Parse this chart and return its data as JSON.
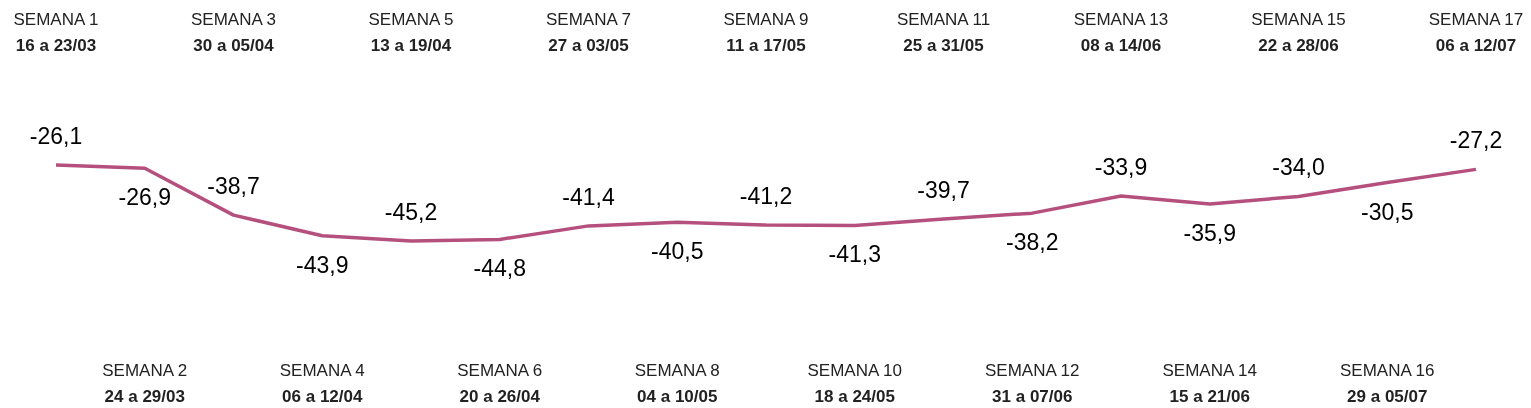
{
  "chart_data": {
    "type": "line",
    "categories": [
      "SEMANA 1\n16 a 23/03",
      "SEMANA 2\n24 a 29/03",
      "SEMANA 3\n30 a 05/04",
      "SEMANA 4\n06 a 12/04",
      "SEMANA 5\n13 a 19/04",
      "SEMANA 6\n20 a 26/04",
      "SEMANA 7\n27 a 03/05",
      "SEMANA 8\n04 a 10/05",
      "SEMANA 9\n11 a 17/05",
      "SEMANA 10\n18 a 24/05",
      "SEMANA 11\n25 a 31/05",
      "SEMANA 12\n31 a 07/06",
      "SEMANA 13\n08 a 14/06",
      "SEMANA 14\n15 a 21/06",
      "SEMANA 15\n22 a 28/06",
      "SEMANA 16\n29 a 05/07",
      "SEMANA 17\n06 a 12/07"
    ],
    "series": [
      {
        "color": "#b5507e",
        "values": [
          -26.1,
          -26.9,
          -38.7,
          -43.9,
          -45.2,
          -44.8,
          -41.4,
          -40.5,
          -41.2,
          -41.3,
          -39.7,
          -38.2,
          -33.9,
          -35.9,
          -34.0,
          -30.5,
          -27.2
        ],
        "value_labels": [
          "-26,1",
          "-26,9",
          "-38,7",
          "-43,9",
          "-45,2",
          "-44,8",
          "-41,4",
          "-40,5",
          "-41,2",
          "-41,3",
          "-39,7",
          "-38,2",
          "-33,9",
          "-35,9",
          "-34,0",
          "-30,5",
          "-27,2"
        ]
      }
    ],
    "grid": false,
    "legend": false,
    "marker": "none",
    "line_style": "solid"
  }
}
